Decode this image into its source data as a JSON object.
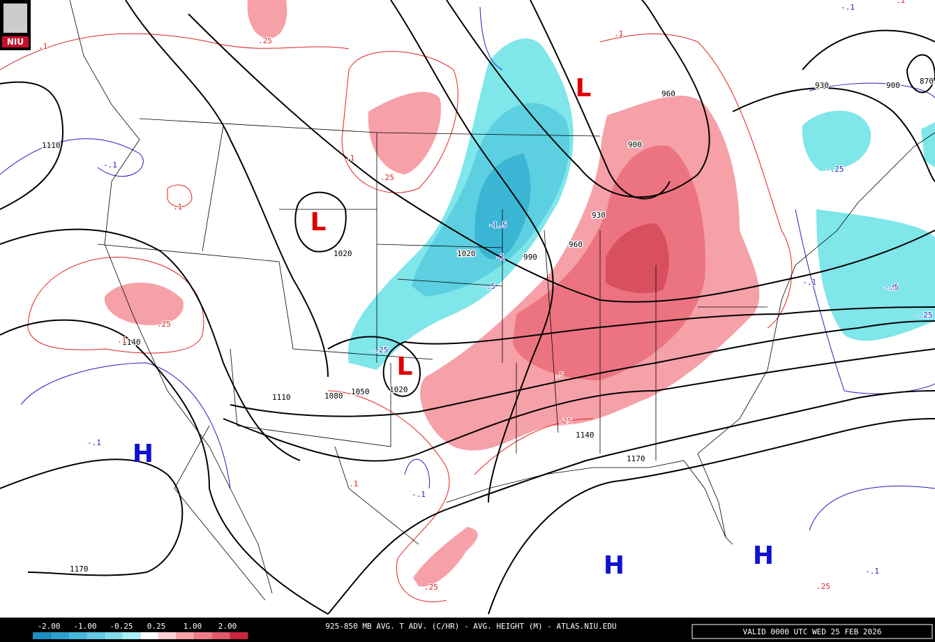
{
  "logo": "NIU",
  "footer": {
    "title": "925-850 MB AVG. T ADV. (C/HR) - AVG. HEIGHT (M) - ATLAS.NIU.EDU",
    "valid": "VALID 0000 UTC WED 25 FEB 2026",
    "legend_labels": [
      "-2.00",
      "-1.00",
      "-0.25",
      "0.25",
      "1.00",
      "2.00"
    ]
  },
  "centers": [
    "L",
    "L",
    "L",
    "H",
    "H",
    "H"
  ],
  "height_labels": [
    "1110",
    "1020",
    "990",
    "960",
    "930",
    "900",
    "960",
    "930",
    "900",
    "870",
    "1020",
    "1140",
    "1110",
    "1080",
    "1050",
    "1020",
    "1140",
    "1170",
    "1170"
  ],
  "advection_labels": [
    ".1",
    ".25",
    ".1",
    ".25",
    ".1",
    ".25",
    ".1",
    ".25",
    ".1",
    ".5",
    ".25",
    ".1",
    ".25",
    ".1",
    "-.1",
    "-.25",
    "-.5",
    "-1",
    "-1.5",
    "-.5",
    "-.25",
    "-.1",
    "-.5",
    "-.25",
    "-.1",
    "-.1",
    "-.1",
    "-.1"
  ]
}
